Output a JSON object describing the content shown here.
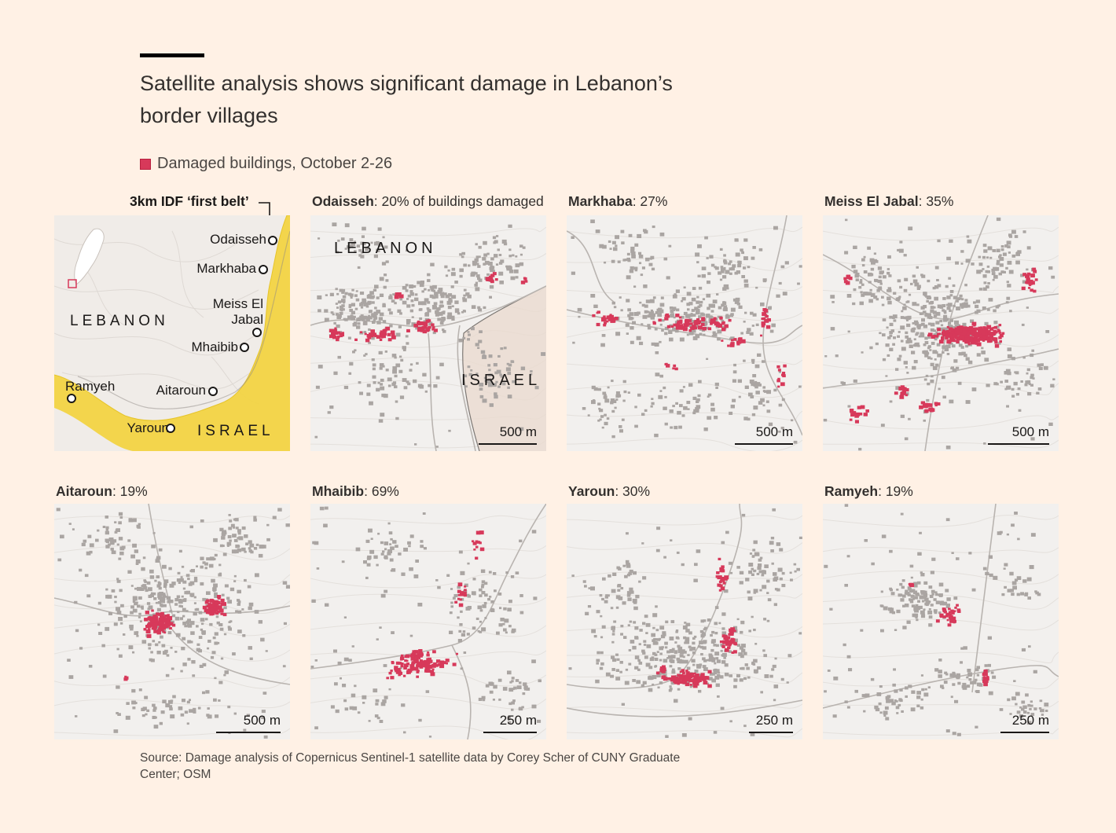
{
  "title": "Satellite analysis shows significant damage in Lebanon’s border villages",
  "legend": {
    "label": "Damaged buildings, October 2-26",
    "color": "#d7395a"
  },
  "overview": {
    "belt_label": "3km IDF ‘first belt’",
    "country_lebanon": "LEBANON",
    "country_israel": "ISRAEL",
    "places": {
      "odaisseh": "Odaisseh",
      "markhaba": "Markhaba",
      "meiss_line1": "Meiss El",
      "meiss_line2": "Jabal",
      "mhaibib": "Mhaibib",
      "ramyeh": "Ramyeh",
      "aitaroun": "Aitaroun",
      "yaroun": "Yaroun"
    },
    "belt_color": "#f2d443"
  },
  "panels": [
    {
      "name": "Odaisseh",
      "stat": ": 20% of buildings damaged",
      "scale": "500 m",
      "lebanon": "LEBANON",
      "israel": "ISRAEL"
    },
    {
      "name": "Markhaba",
      "stat": ": 27%",
      "scale": "500 m"
    },
    {
      "name": "Meiss El Jabal",
      "stat": ": 35%",
      "scale": "500 m"
    },
    {
      "name": "Aitaroun",
      "stat": ": 19%",
      "scale": "500 m"
    },
    {
      "name": "Mhaibib",
      "stat": ": 69%",
      "scale": "250 m"
    },
    {
      "name": "Yaroun",
      "stat": ": 30%",
      "scale": "250 m"
    },
    {
      "name": "Ramyeh",
      "stat": ": 19%",
      "scale": "250 m"
    }
  ],
  "source": "Source: Damage analysis of Copernicus Sentinel-1 satellite data by Corey Scher of CUNY Graduate Center; OSM",
  "colors": {
    "background": "#fff1e5",
    "damaged": "#d7395a",
    "building": "#aaa5a2",
    "terrain": "#f2f0ee"
  }
}
